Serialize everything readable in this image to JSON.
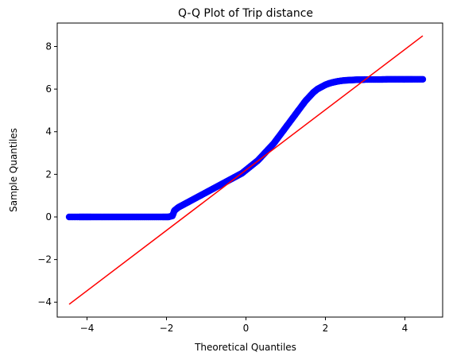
{
  "chart_data": {
    "type": "scatter",
    "title": "Q-Q Plot of Trip distance",
    "xlabel": "Theoretical Quantiles",
    "ylabel": "Sample Quantiles",
    "xlim": [
      -4.75,
      4.95
    ],
    "ylim": [
      -4.7,
      9.1
    ],
    "xticks": [
      -4,
      -2,
      0,
      2,
      4
    ],
    "xtick_labels": [
      "−4",
      "−2",
      "0",
      "2",
      "4"
    ],
    "yticks": [
      -4,
      -2,
      0,
      2,
      4,
      6,
      8
    ],
    "ytick_labels": [
      "−4",
      "−2",
      "0",
      "2",
      "4",
      "6",
      "8"
    ],
    "grid": false,
    "legend": "none",
    "series": [
      {
        "kind": "points",
        "color": "#0000ff",
        "x": [
          -4.45,
          -4.2,
          -4.05,
          -3.9,
          -3.7,
          -3.5,
          -3.3,
          -3.1,
          -2.9,
          -2.7,
          -2.5,
          -2.3,
          -2.1,
          -1.95,
          -1.85,
          -1.8,
          -1.7,
          -1.6,
          -1.5,
          -1.4,
          -1.3,
          -1.2,
          -1.1,
          -1.0,
          -0.9,
          -0.8,
          -0.7,
          -0.6,
          -0.5,
          -0.4,
          -0.3,
          -0.2,
          -0.1,
          0.0,
          0.1,
          0.2,
          0.3,
          0.4,
          0.5,
          0.6,
          0.7,
          0.8,
          0.9,
          1.0,
          1.1,
          1.2,
          1.3,
          1.4,
          1.5,
          1.6,
          1.7,
          1.8,
          1.9,
          2.0,
          2.1,
          2.2,
          2.3,
          2.4,
          2.5,
          2.6,
          2.7,
          2.8,
          2.9,
          3.0,
          3.2,
          3.4,
          3.6,
          3.8,
          4.0,
          4.2,
          4.45
        ],
        "y": [
          0.0,
          0.0,
          0.0,
          0.0,
          0.0,
          0.0,
          0.0,
          0.0,
          0.0,
          0.0,
          0.0,
          0.0,
          0.0,
          0.0,
          0.05,
          0.3,
          0.45,
          0.55,
          0.65,
          0.75,
          0.85,
          0.95,
          1.05,
          1.15,
          1.25,
          1.35,
          1.45,
          1.55,
          1.65,
          1.75,
          1.85,
          1.95,
          2.05,
          2.2,
          2.35,
          2.5,
          2.65,
          2.85,
          3.05,
          3.25,
          3.45,
          3.7,
          3.95,
          4.2,
          4.45,
          4.7,
          4.95,
          5.2,
          5.45,
          5.65,
          5.85,
          6.0,
          6.1,
          6.2,
          6.27,
          6.32,
          6.36,
          6.39,
          6.41,
          6.42,
          6.43,
          6.44,
          6.44,
          6.45,
          6.45,
          6.45,
          6.46,
          6.46,
          6.46,
          6.46,
          6.46
        ]
      },
      {
        "kind": "line",
        "color": "#ff0000",
        "x": [
          -4.45,
          4.45
        ],
        "y": [
          -4.1,
          8.5
        ]
      }
    ]
  }
}
